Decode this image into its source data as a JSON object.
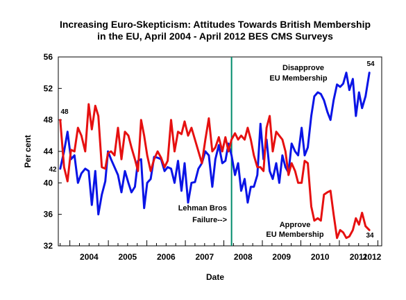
{
  "chart_data": {
    "type": "line",
    "title_line1": "Increasing Euro-Skepticism:  Attitudes Towards British Membership",
    "title_line2": "in the EU, April 2004 - April 2012 BES CMS Surveys",
    "xlabel": "Date",
    "ylabel": "Per cent",
    "ylim": [
      32,
      56
    ],
    "yticks": [
      "32",
      "36",
      "40",
      "44",
      "48",
      "52",
      "56"
    ],
    "xlim": [
      2003.7,
      2012.1
    ],
    "xtick_labels": [
      "2004",
      "2005",
      "2006",
      "2007",
      "2008",
      "2009",
      "2010",
      "2011",
      "2012"
    ],
    "grid": false,
    "vertical_marker": {
      "x": 2008.2,
      "color": "#008b6b"
    },
    "annotations": {
      "lehman_line1": "Lehman Bros",
      "lehman_line2": "Failure-->",
      "disapprove_line1": "Disapprove",
      "disapprove_line2": "EU Membership",
      "approve_line1": "Approve",
      "approve_line2": "EU Membership",
      "approve_start": "48",
      "disapprove_start": "42",
      "disapprove_end": "54",
      "approve_end": "34"
    },
    "series": [
      {
        "key": "disapprove",
        "color": "#0a14e6",
        "points": [
          [
            2003.75,
            41.8
          ],
          [
            2003.85,
            44.0
          ],
          [
            2003.94,
            46.5
          ],
          [
            2004.03,
            43.0
          ],
          [
            2004.12,
            43.5
          ],
          [
            2004.21,
            40.0
          ],
          [
            2004.3,
            41.2
          ],
          [
            2004.4,
            41.8
          ],
          [
            2004.49,
            41.5
          ],
          [
            2004.57,
            37.2
          ],
          [
            2004.66,
            41.5
          ],
          [
            2004.74,
            36.0
          ],
          [
            2004.83,
            38.5
          ],
          [
            2004.92,
            40.2
          ],
          [
            2004.99,
            44.0
          ],
          [
            2005.07,
            43.0
          ],
          [
            2005.16,
            42.0
          ],
          [
            2005.25,
            41.0
          ],
          [
            2005.34,
            38.8
          ],
          [
            2005.43,
            41.5
          ],
          [
            2005.52,
            40.0
          ],
          [
            2005.6,
            38.8
          ],
          [
            2005.69,
            39.5
          ],
          [
            2005.77,
            42.8
          ],
          [
            2005.85,
            43.0
          ],
          [
            2005.93,
            36.8
          ],
          [
            2006.01,
            40.0
          ],
          [
            2006.1,
            40.5
          ],
          [
            2006.19,
            43.3
          ],
          [
            2006.28,
            43.2
          ],
          [
            2006.37,
            43.0
          ],
          [
            2006.46,
            41.5
          ],
          [
            2006.54,
            42.0
          ],
          [
            2006.63,
            41.8
          ],
          [
            2006.72,
            40.0
          ],
          [
            2006.81,
            42.8
          ],
          [
            2006.9,
            39.0
          ],
          [
            2006.98,
            42.5
          ],
          [
            2007.07,
            37.5
          ],
          [
            2007.16,
            40.0
          ],
          [
            2007.25,
            40.1
          ],
          [
            2007.34,
            41.8
          ],
          [
            2007.43,
            42.5
          ],
          [
            2007.52,
            44.0
          ],
          [
            2007.61,
            43.5
          ],
          [
            2007.7,
            39.5
          ],
          [
            2007.78,
            43.0
          ],
          [
            2007.87,
            44.8
          ],
          [
            2007.96,
            42.5
          ],
          [
            2008.04,
            42.8
          ],
          [
            2008.12,
            45.0
          ],
          [
            2008.2,
            43.5
          ],
          [
            2008.29,
            41.0
          ],
          [
            2008.37,
            42.5
          ],
          [
            2008.45,
            39.0
          ],
          [
            2008.54,
            40.5
          ],
          [
            2008.62,
            37.5
          ],
          [
            2008.7,
            39.5
          ],
          [
            2008.78,
            39.5
          ],
          [
            2008.87,
            41.0
          ],
          [
            2008.95,
            47.5
          ],
          [
            2009.03,
            43.0
          ],
          [
            2009.11,
            45.5
          ],
          [
            2009.19,
            41.5
          ],
          [
            2009.27,
            40.5
          ],
          [
            2009.36,
            42.5
          ],
          [
            2009.44,
            40.0
          ],
          [
            2009.52,
            43.5
          ],
          [
            2009.6,
            42.0
          ],
          [
            2009.68,
            41.3
          ],
          [
            2009.76,
            45.0
          ],
          [
            2009.85,
            44.0
          ],
          [
            2009.93,
            43.5
          ],
          [
            2010.02,
            47.0
          ],
          [
            2010.1,
            43.5
          ],
          [
            2010.18,
            44.5
          ],
          [
            2010.27,
            48.5
          ],
          [
            2010.35,
            51.0
          ],
          [
            2010.44,
            51.5
          ],
          [
            2010.52,
            51.3
          ],
          [
            2010.6,
            50.5
          ],
          [
            2010.69,
            49.0
          ],
          [
            2010.77,
            48.0
          ],
          [
            2010.85,
            50.5
          ],
          [
            2010.94,
            52.5
          ],
          [
            2011.02,
            52.2
          ],
          [
            2011.1,
            52.6
          ],
          [
            2011.18,
            54.0
          ],
          [
            2011.26,
            51.8
          ],
          [
            2011.35,
            53.2
          ],
          [
            2011.43,
            48.5
          ],
          [
            2011.51,
            51.5
          ],
          [
            2011.59,
            49.5
          ],
          [
            2011.68,
            51.0
          ],
          [
            2011.78,
            54.0
          ]
        ]
      },
      {
        "key": "approve",
        "color": "#e61010",
        "points": [
          [
            2003.75,
            48.0
          ],
          [
            2003.85,
            42.0
          ],
          [
            2003.94,
            40.2
          ],
          [
            2004.03,
            44.2
          ],
          [
            2004.12,
            44.0
          ],
          [
            2004.21,
            47.0
          ],
          [
            2004.3,
            46.0
          ],
          [
            2004.4,
            44.0
          ],
          [
            2004.49,
            50.0
          ],
          [
            2004.57,
            46.8
          ],
          [
            2004.66,
            49.8
          ],
          [
            2004.74,
            48.5
          ],
          [
            2004.83,
            42.0
          ],
          [
            2004.92,
            41.8
          ],
          [
            2004.99,
            43.8
          ],
          [
            2005.07,
            44.0
          ],
          [
            2005.16,
            43.5
          ],
          [
            2005.25,
            47.0
          ],
          [
            2005.34,
            43.0
          ],
          [
            2005.43,
            46.5
          ],
          [
            2005.52,
            46.0
          ],
          [
            2005.6,
            44.5
          ],
          [
            2005.69,
            43.0
          ],
          [
            2005.77,
            41.5
          ],
          [
            2005.85,
            48.0
          ],
          [
            2005.93,
            46.0
          ],
          [
            2006.01,
            43.5
          ],
          [
            2006.1,
            41.5
          ],
          [
            2006.19,
            43.0
          ],
          [
            2006.28,
            44.0
          ],
          [
            2006.37,
            43.2
          ],
          [
            2006.46,
            42.0
          ],
          [
            2006.54,
            42.8
          ],
          [
            2006.63,
            48.0
          ],
          [
            2006.72,
            44.0
          ],
          [
            2006.81,
            46.5
          ],
          [
            2006.9,
            46.2
          ],
          [
            2006.98,
            47.8
          ],
          [
            2007.07,
            46.0
          ],
          [
            2007.16,
            47.0
          ],
          [
            2007.25,
            45.5
          ],
          [
            2007.34,
            44.0
          ],
          [
            2007.43,
            42.5
          ],
          [
            2007.52,
            45.5
          ],
          [
            2007.61,
            48.2
          ],
          [
            2007.7,
            44.0
          ],
          [
            2007.78,
            44.5
          ],
          [
            2007.87,
            45.8
          ],
          [
            2007.96,
            44.0
          ],
          [
            2008.04,
            45.8
          ],
          [
            2008.12,
            44.0
          ],
          [
            2008.2,
            45.5
          ],
          [
            2008.29,
            46.3
          ],
          [
            2008.37,
            45.5
          ],
          [
            2008.45,
            46.0
          ],
          [
            2008.54,
            45.5
          ],
          [
            2008.62,
            47.0
          ],
          [
            2008.7,
            45.5
          ],
          [
            2008.78,
            43.5
          ],
          [
            2008.87,
            42.0
          ],
          [
            2008.95,
            42.0
          ],
          [
            2009.03,
            41.5
          ],
          [
            2009.11,
            47.0
          ],
          [
            2009.19,
            48.5
          ],
          [
            2009.27,
            44.0
          ],
          [
            2009.36,
            46.5
          ],
          [
            2009.44,
            46.0
          ],
          [
            2009.52,
            45.5
          ],
          [
            2009.6,
            44.0
          ],
          [
            2009.68,
            41.0
          ],
          [
            2009.76,
            42.5
          ],
          [
            2009.85,
            41.5
          ],
          [
            2009.93,
            40.0
          ],
          [
            2010.02,
            40.0
          ],
          [
            2010.1,
            42.8
          ],
          [
            2010.18,
            42.5
          ],
          [
            2010.27,
            37.0
          ],
          [
            2010.35,
            35.2
          ],
          [
            2010.44,
            35.5
          ],
          [
            2010.52,
            35.2
          ],
          [
            2010.6,
            38.5
          ],
          [
            2010.69,
            38.8
          ],
          [
            2010.77,
            39.0
          ],
          [
            2010.85,
            36.0
          ],
          [
            2010.94,
            33.0
          ],
          [
            2011.02,
            34.0
          ],
          [
            2011.1,
            33.7
          ],
          [
            2011.18,
            33.0
          ],
          [
            2011.26,
            33.2
          ],
          [
            2011.35,
            34.0
          ],
          [
            2011.43,
            35.5
          ],
          [
            2011.51,
            34.7
          ],
          [
            2011.59,
            36.2
          ],
          [
            2011.68,
            34.5
          ],
          [
            2011.78,
            34.0
          ]
        ]
      }
    ]
  }
}
